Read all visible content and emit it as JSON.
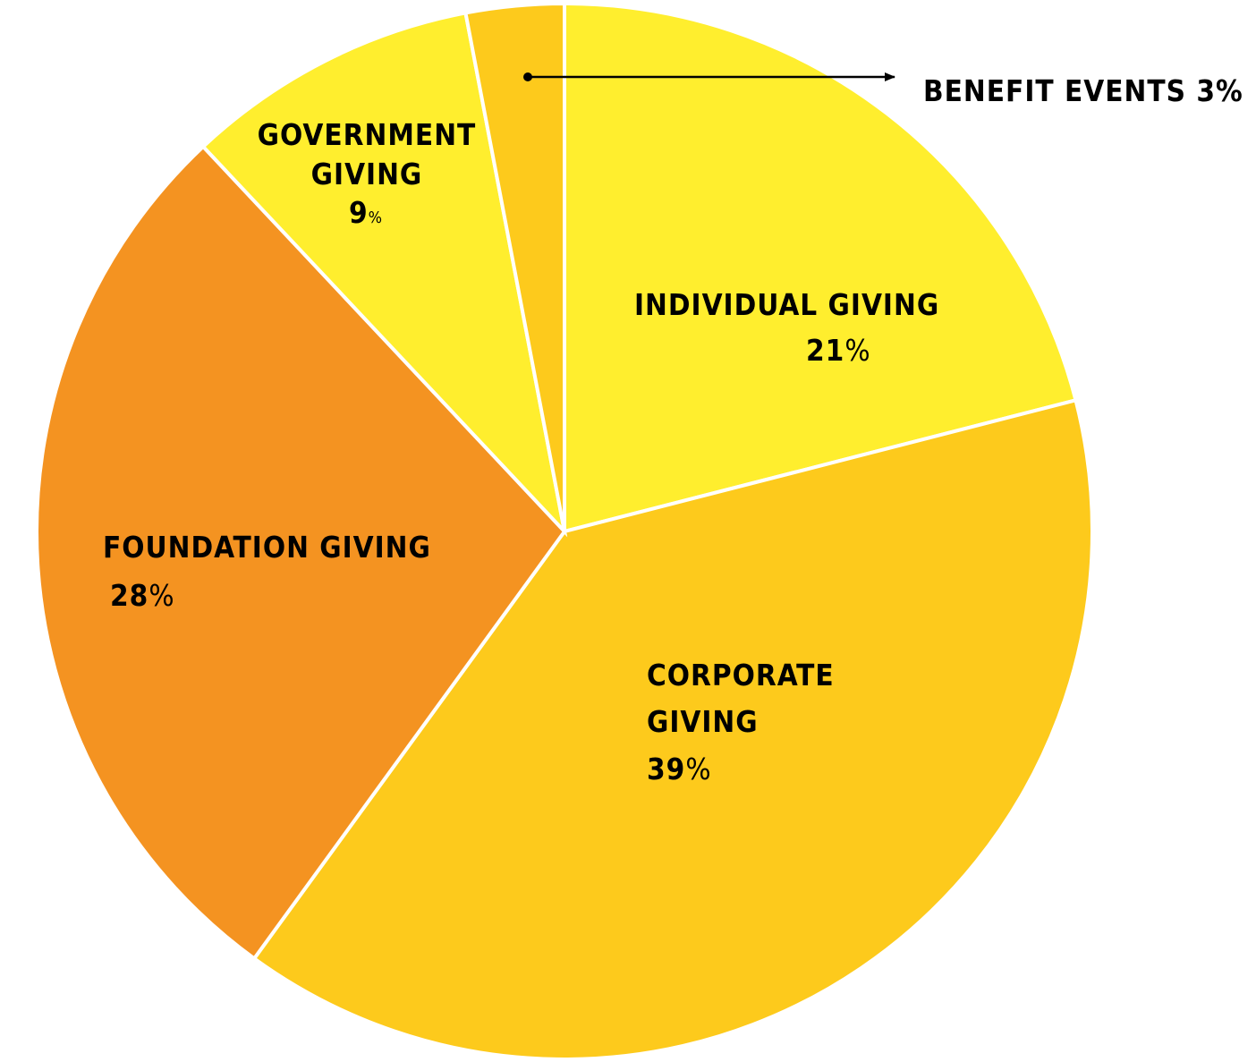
{
  "chart_data": {
    "type": "pie",
    "start_angle_deg": 0,
    "direction": "clockwise",
    "slices": [
      {
        "name": "INDIVIDUAL GIVING",
        "label_lines": [
          "INDIVIDUAL GIVING"
        ],
        "value": 21,
        "percent_text": "21%",
        "color": "#FFEE2E"
      },
      {
        "name": "CORPORATE GIVING",
        "label_lines": [
          "CORPORATE",
          "GIVING"
        ],
        "value": 39,
        "percent_text": "39%",
        "color": "#FDCA1C"
      },
      {
        "name": "FOUNDATION GIVING",
        "label_lines": [
          "FOUNDATION GIVING"
        ],
        "value": 28,
        "percent_text": "28%",
        "color": "#F49321"
      },
      {
        "name": "GOVERNMENT GIVING",
        "label_lines": [
          "GOVERNMENT",
          "GIVING"
        ],
        "value": 9,
        "percent_text": "9%",
        "color": "#FFEE2E"
      },
      {
        "name": "BENEFIT EVENTS",
        "label_lines": [
          "BENEFIT EVENTS 3%"
        ],
        "value": 3,
        "percent_text": "3%",
        "color": "#FDCA1C"
      }
    ],
    "annotations": [
      {
        "slice": "BENEFIT EVENTS",
        "style": "arrow-callout",
        "text": "BENEFIT EVENTS 3%"
      }
    ]
  }
}
